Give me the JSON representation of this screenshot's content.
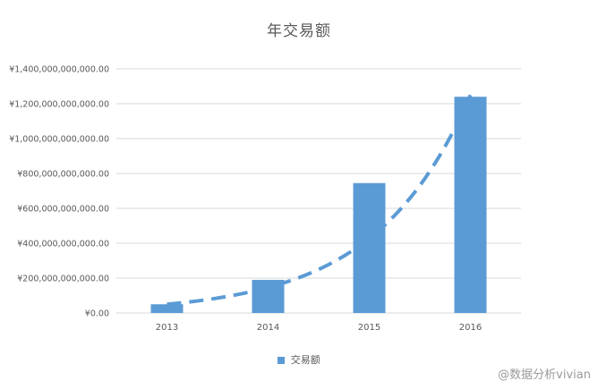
{
  "chart_data": {
    "type": "bar",
    "title": "年交易额",
    "categories": [
      "2013",
      "2014",
      "2015",
      "2016"
    ],
    "series": [
      {
        "name": "交易额",
        "values": [
          50000000000,
          190000000000,
          745000000000,
          1240000000000
        ]
      }
    ],
    "trendline": {
      "type": "exponential",
      "style": "dashed",
      "start_value": 50000000000,
      "end_value": 1250000000000
    },
    "yticks": [
      "¥0.00",
      "¥200,000,000,000.00",
      "¥400,000,000,000.00",
      "¥600,000,000,000.00",
      "¥800,000,000,000.00",
      "¥1,000,000,000,000.00",
      "¥1,200,000,000,000.00",
      "¥1,400,000,000,000.00"
    ],
    "ylim": [
      0,
      1400000000000
    ],
    "grid": true,
    "legend": "bottom",
    "colors": {
      "bar": "#5b9bd5",
      "grid": "#d9d9d9",
      "axis_text": "#595959"
    }
  },
  "watermark": "@数据分析vivian"
}
